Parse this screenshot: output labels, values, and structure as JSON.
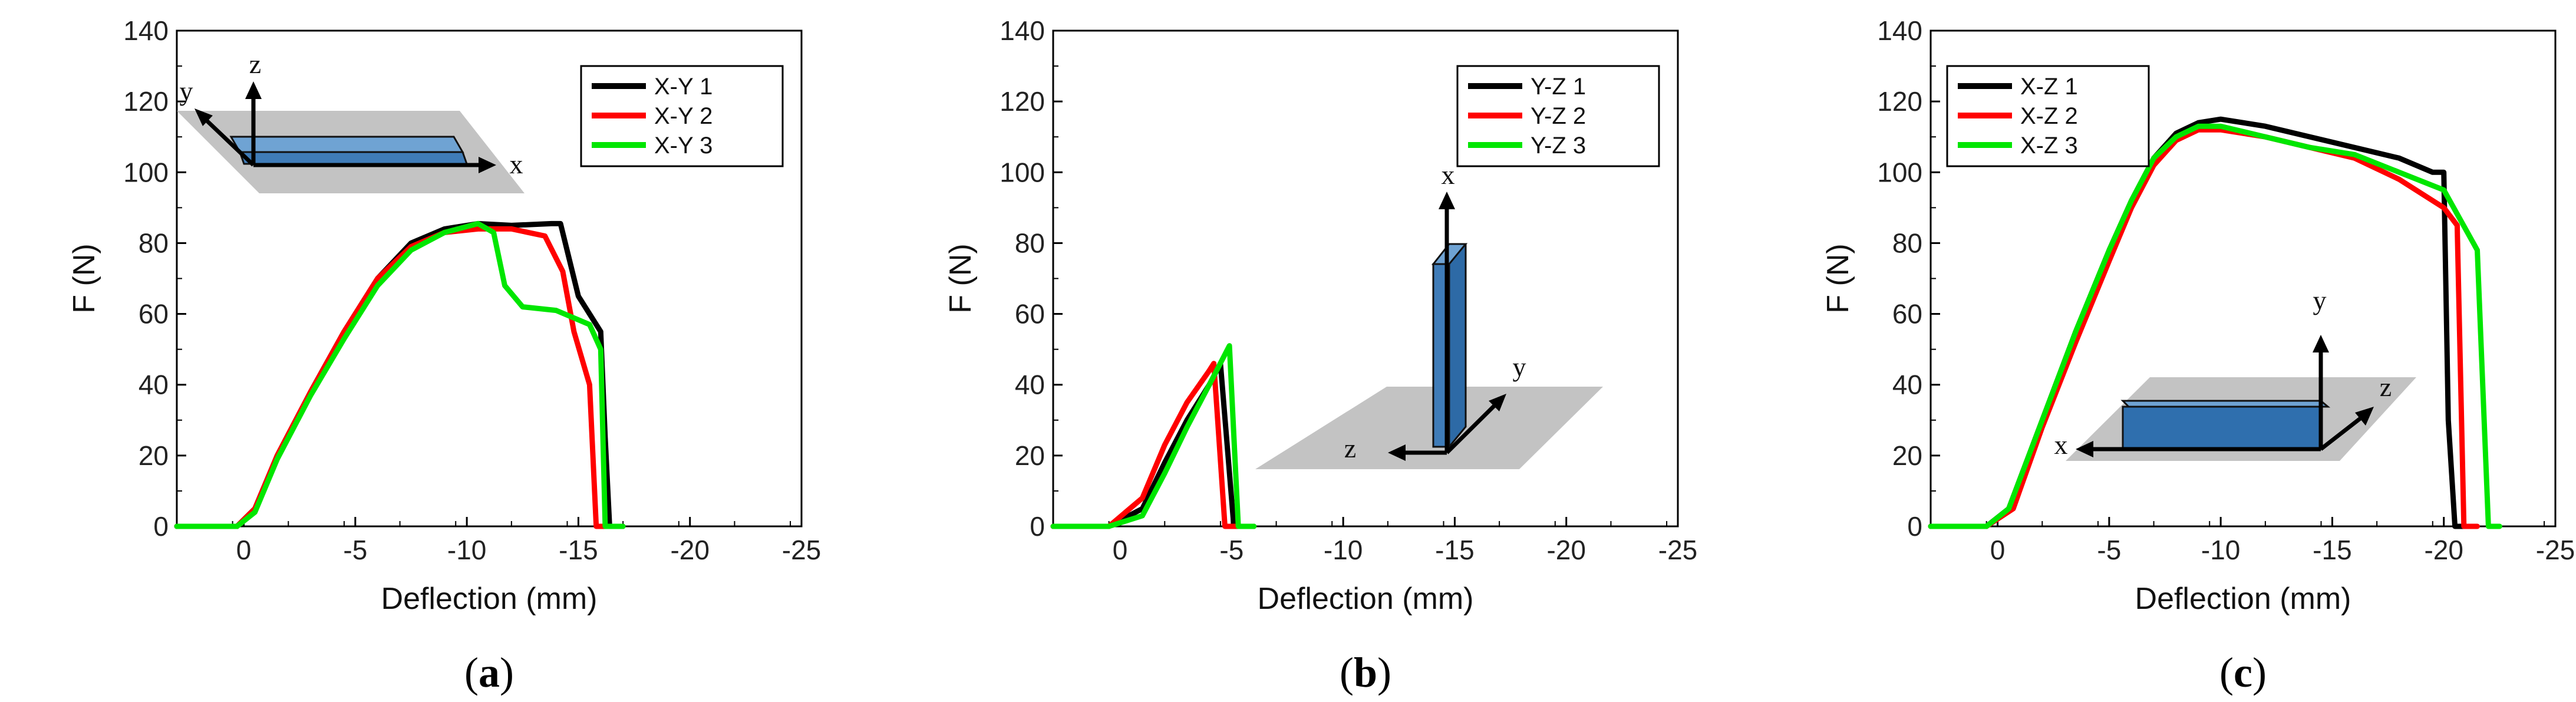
{
  "chart_data": [
    {
      "type": "line",
      "panel": "a",
      "caption_letter": "a",
      "xlabel": "Deflection (mm)",
      "ylabel": "F (N)",
      "xlim": [
        3,
        -25
      ],
      "ylim": [
        0,
        140
      ],
      "x_ticks": [
        0,
        -5,
        -10,
        -15,
        -20,
        -25
      ],
      "x_tick_labels": [
        "0",
        "-5",
        "-10",
        "-15",
        "-20",
        "-25"
      ],
      "y_ticks": [
        0,
        20,
        40,
        60,
        80,
        100,
        120,
        140
      ],
      "y_tick_labels": [
        "0",
        "20",
        "40",
        "60",
        "80",
        "100",
        "120",
        "140"
      ],
      "legend_position": "top-right",
      "inset": {
        "labels": [
          "z",
          "y",
          "x"
        ],
        "orientation": "flat X-Y"
      },
      "series": [
        {
          "name": "X-Y 1",
          "color": "#000000",
          "x": [
            3,
            0.3,
            -0.5,
            -1.5,
            -3,
            -4.5,
            -6,
            -7.5,
            -9,
            -10.5,
            -12,
            -13.8,
            -14.2,
            -15,
            -16,
            -16.2,
            -16.4,
            -17
          ],
          "y": [
            0,
            0,
            5,
            20,
            38,
            55,
            70,
            80,
            84,
            85.5,
            85,
            85.5,
            85.5,
            65,
            55,
            25,
            0,
            0
          ]
        },
        {
          "name": "X-Y 2",
          "color": "#ff0000",
          "x": [
            3,
            0.3,
            -0.5,
            -1.5,
            -3,
            -4.5,
            -6,
            -7.5,
            -9,
            -10.5,
            -12,
            -13.5,
            -14.3,
            -14.8,
            -15.5,
            -15.8,
            -16.4
          ],
          "y": [
            0,
            0,
            5,
            20,
            38,
            55,
            70,
            79,
            83,
            84,
            84,
            82,
            72,
            55,
            40,
            0,
            0
          ]
        },
        {
          "name": "X-Y 3",
          "color": "#00e600",
          "x": [
            3,
            0.3,
            -0.5,
            -1.5,
            -3,
            -4.5,
            -6,
            -7.5,
            -9,
            -10.5,
            -11.2,
            -11.7,
            -12.5,
            -14,
            -15.5,
            -16,
            -16.2,
            -17
          ],
          "y": [
            0,
            0,
            4,
            19,
            37,
            53,
            68,
            78,
            83,
            85.5,
            83,
            68,
            62,
            61,
            57,
            50,
            0,
            0
          ]
        }
      ]
    },
    {
      "type": "line",
      "panel": "b",
      "caption_letter": "b",
      "xlabel": "Deflection (mm)",
      "ylabel": "F (N)",
      "xlim": [
        3,
        -25
      ],
      "ylim": [
        0,
        140
      ],
      "x_ticks": [
        0,
        -5,
        -10,
        -15,
        -20,
        -25
      ],
      "x_tick_labels": [
        "0",
        "-5",
        "-10",
        "-15",
        "-20",
        "-25"
      ],
      "y_ticks": [
        0,
        20,
        40,
        60,
        80,
        100,
        120,
        140
      ],
      "y_tick_labels": [
        "0",
        "20",
        "40",
        "60",
        "80",
        "100",
        "120",
        "140"
      ],
      "legend_position": "top-right",
      "inset": {
        "labels": [
          "x",
          "y",
          "z"
        ],
        "orientation": "vertical Y-Z"
      },
      "series": [
        {
          "name": "Y-Z 1",
          "color": "#000000",
          "x": [
            3,
            0.5,
            -1,
            -2,
            -3,
            -4,
            -4.5,
            -5.1,
            -6
          ],
          "y": [
            0,
            0,
            5,
            18,
            30,
            40,
            46,
            0,
            0
          ]
        },
        {
          "name": "Y-Z 2",
          "color": "#ff0000",
          "x": [
            3,
            0.5,
            -1,
            -2,
            -3,
            -4,
            -4.2,
            -4.7,
            -5.5
          ],
          "y": [
            0,
            0,
            8,
            23,
            35,
            44,
            46,
            0,
            0
          ]
        },
        {
          "name": "Y-Z 3",
          "color": "#00e600",
          "x": [
            3,
            0.5,
            -1,
            -2,
            -3,
            -4,
            -4.9,
            -5.3,
            -6
          ],
          "y": [
            0,
            0,
            3,
            15,
            28,
            40,
            51,
            0,
            0
          ]
        }
      ]
    },
    {
      "type": "line",
      "panel": "c",
      "caption_letter": "c",
      "xlabel": "Deflection (mm)",
      "ylabel": "F (N)",
      "xlim": [
        3,
        -25
      ],
      "ylim": [
        0,
        140
      ],
      "x_ticks": [
        0,
        -5,
        -10,
        -15,
        -20,
        -25
      ],
      "x_tick_labels": [
        "0",
        "-5",
        "-10",
        "-15",
        "-20",
        "-25"
      ],
      "y_ticks": [
        0,
        20,
        40,
        60,
        80,
        100,
        120,
        140
      ],
      "y_tick_labels": [
        "0",
        "20",
        "40",
        "60",
        "80",
        "100",
        "120",
        "140"
      ],
      "legend_position": "top-left",
      "inset": {
        "labels": [
          "y",
          "z",
          "x"
        ],
        "orientation": "edgewise X-Z"
      },
      "series": [
        {
          "name": "X-Z 1",
          "color": "#000000",
          "x": [
            3,
            0.5,
            -0.5,
            -2,
            -3.5,
            -5,
            -6,
            -7,
            -8,
            -9,
            -10,
            -12,
            -14,
            -16,
            -18,
            -19.5,
            -20,
            -20.2,
            -20.5,
            -21
          ],
          "y": [
            0,
            0,
            5,
            30,
            55,
            78,
            92,
            104,
            111,
            114,
            115,
            113,
            110,
            107,
            104,
            100,
            100,
            30,
            0,
            0
          ]
        },
        {
          "name": "X-Z 2",
          "color": "#ff0000",
          "x": [
            3,
            0.5,
            -0.7,
            -2,
            -3.5,
            -5,
            -6,
            -7,
            -8,
            -9,
            -10,
            -12,
            -14,
            -16,
            -18,
            -20,
            -20.6,
            -20.9,
            -21.5
          ],
          "y": [
            0,
            0,
            5,
            28,
            52,
            75,
            90,
            102,
            109,
            112,
            112,
            110,
            107,
            104,
            98,
            90,
            85,
            0,
            0
          ]
        },
        {
          "name": "X-Z 3",
          "color": "#00e600",
          "x": [
            3,
            0.5,
            -0.5,
            -2,
            -3.5,
            -5,
            -6,
            -7,
            -8,
            -9,
            -10,
            -12,
            -14,
            -16,
            -18,
            -20,
            -21.5,
            -22,
            -22.5
          ],
          "y": [
            0,
            0,
            5,
            30,
            55,
            78,
            92,
            104,
            110,
            113,
            113,
            110,
            107,
            105,
            100,
            95,
            78,
            0,
            0
          ]
        }
      ]
    }
  ]
}
